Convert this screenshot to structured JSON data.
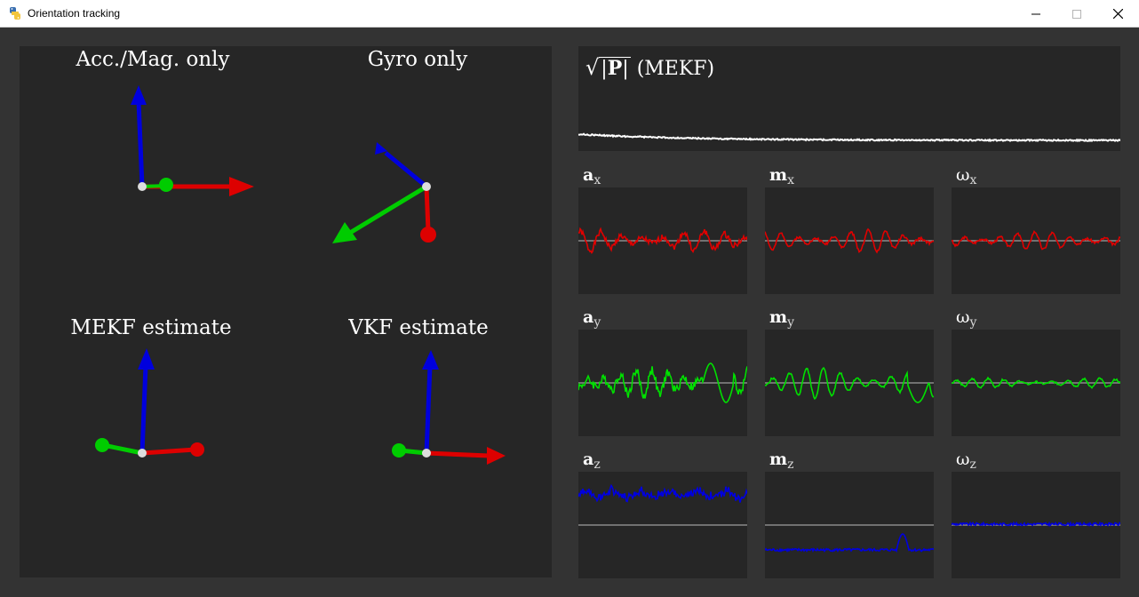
{
  "window": {
    "title": "Orientation tracking",
    "controls": [
      "minimize",
      "maximize",
      "close"
    ]
  },
  "views": {
    "acc_mag": {
      "label": "Acc./Mag. only"
    },
    "gyro": {
      "label": "Gyro only"
    },
    "mekf": {
      "label": "MEKF estimate"
    },
    "vkf": {
      "label": "VKF estimate"
    }
  },
  "covariance_plot": {
    "label_suffix": "(MEKF)",
    "matrix": "P"
  },
  "signal_plots": {
    "ax": {
      "symbol": "a",
      "sub": "x"
    },
    "mx": {
      "symbol": "m",
      "sub": "x"
    },
    "wx": {
      "symbol": "ω",
      "sub": "x"
    },
    "ay": {
      "symbol": "a",
      "sub": "y"
    },
    "my": {
      "symbol": "m",
      "sub": "y"
    },
    "wy": {
      "symbol": "ω",
      "sub": "y"
    },
    "az": {
      "symbol": "a",
      "sub": "z"
    },
    "mz": {
      "symbol": "m",
      "sub": "z"
    },
    "wz": {
      "symbol": "ω",
      "sub": "z"
    }
  },
  "colors": {
    "x_axis": "#e00000",
    "y_axis": "#00e000",
    "z_axis": "#0000e0",
    "trace_p": "#ffffff",
    "zero_line": "#8a8a8a",
    "panel_bg": "#262626",
    "window_bg": "#333333"
  }
}
